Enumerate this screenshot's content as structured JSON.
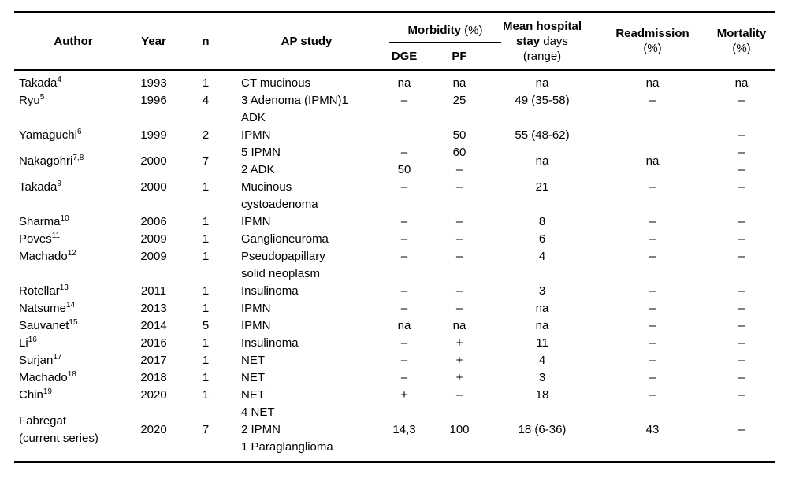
{
  "page": {
    "background": "#ffffff",
    "text_color": "#000000",
    "rule_color": "#000000"
  },
  "table": {
    "header": {
      "author": "Author",
      "year": "Year",
      "n": "n",
      "ap_study": "AP study",
      "morbidity": "Morbidity",
      "morbidity_pct": " (%)",
      "dge": "DGE",
      "pf": "PF",
      "stay_line1": "Mean hospital",
      "stay_line2_bold": "stay",
      "stay_line2_rest": " days",
      "stay_line3": "(range)",
      "readmission": "Readmission",
      "readmission_pct": "(%)",
      "mortality": "Mortality",
      "mortality_pct": "(%)"
    },
    "rows": [
      {
        "author": "Takada",
        "author_sup": "4",
        "author_line2": "",
        "year": "1993",
        "n": "1",
        "ap": [
          "CT mucinous"
        ],
        "dge": [
          "na"
        ],
        "pf": [
          "na"
        ],
        "stay": [
          "na"
        ],
        "readmission": [
          "na"
        ],
        "mortality": [
          "na"
        ],
        "middle_cols": []
      },
      {
        "author": "Ryu",
        "author_sup": "5",
        "author_line2": "",
        "year": "1996",
        "n": "4",
        "ap": [
          "3 Adenoma (IPMN)1",
          "ADK"
        ],
        "dge": [
          "–"
        ],
        "pf": [
          "25"
        ],
        "stay": [
          "49 (35-58)"
        ],
        "readmission": [
          "–"
        ],
        "mortality": [
          "–"
        ],
        "middle_cols": []
      },
      {
        "author": "Yamaguchi",
        "author_sup": "6",
        "author_line2": "",
        "year": "1999",
        "n": "2",
        "ap": [
          "IPMN"
        ],
        "dge": [
          ""
        ],
        "pf": [
          "50"
        ],
        "stay": [
          "55 (48-62)"
        ],
        "readmission": [
          ""
        ],
        "mortality": [
          "–"
        ],
        "middle_cols": []
      },
      {
        "author": "Nakagohri",
        "author_sup": "7,8",
        "author_line2": "",
        "year": "2000",
        "n": "7",
        "ap": [
          "5 IPMN",
          "2 ADK"
        ],
        "dge": [
          "–",
          "50"
        ],
        "pf": [
          "60",
          "–"
        ],
        "stay": [
          "na"
        ],
        "readmission": [
          "na"
        ],
        "mortality": [
          "–",
          "–"
        ],
        "middle_cols": [
          "author",
          "year",
          "n",
          "stay",
          "readmission"
        ]
      },
      {
        "author": "Takada",
        "author_sup": "9",
        "author_line2": "",
        "year": "2000",
        "n": "1",
        "ap": [
          "Mucinous",
          "cystoadenoma"
        ],
        "dge": [
          "–"
        ],
        "pf": [
          "–"
        ],
        "stay": [
          "21"
        ],
        "readmission": [
          "–"
        ],
        "mortality": [
          "–"
        ],
        "middle_cols": []
      },
      {
        "author": "Sharma",
        "author_sup": "10",
        "author_line2": "",
        "year": "2006",
        "n": "1",
        "ap": [
          "IPMN"
        ],
        "dge": [
          "–"
        ],
        "pf": [
          "–"
        ],
        "stay": [
          "8"
        ],
        "readmission": [
          "–"
        ],
        "mortality": [
          "–"
        ],
        "middle_cols": []
      },
      {
        "author": "Poves",
        "author_sup": "11",
        "author_line2": "",
        "year": "2009",
        "n": "1",
        "ap": [
          "Ganglioneuroma"
        ],
        "dge": [
          "–"
        ],
        "pf": [
          "–"
        ],
        "stay": [
          "6"
        ],
        "readmission": [
          "–"
        ],
        "mortality": [
          "–"
        ],
        "middle_cols": []
      },
      {
        "author": "Machado",
        "author_sup": "12",
        "author_line2": "",
        "year": "2009",
        "n": "1",
        "ap": [
          "Pseudopapillary",
          "solid neoplasm"
        ],
        "dge": [
          "–"
        ],
        "pf": [
          "–"
        ],
        "stay": [
          "4"
        ],
        "readmission": [
          "–"
        ],
        "mortality": [
          "–"
        ],
        "middle_cols": []
      },
      {
        "author": "Rotellar",
        "author_sup": "13",
        "author_line2": "",
        "year": "2011",
        "n": "1",
        "ap": [
          "Insulinoma"
        ],
        "dge": [
          "–"
        ],
        "pf": [
          "–"
        ],
        "stay": [
          "3"
        ],
        "readmission": [
          "–"
        ],
        "mortality": [
          "–"
        ],
        "middle_cols": []
      },
      {
        "author": "Natsume",
        "author_sup": "14",
        "author_line2": "",
        "year": "2013",
        "n": "1",
        "ap": [
          "IPMN"
        ],
        "dge": [
          "–"
        ],
        "pf": [
          "–"
        ],
        "stay": [
          "na"
        ],
        "readmission": [
          "–"
        ],
        "mortality": [
          "–"
        ],
        "middle_cols": []
      },
      {
        "author": "Sauvanet",
        "author_sup": "15",
        "author_line2": "",
        "year": "2014",
        "n": "5",
        "ap": [
          "IPMN"
        ],
        "dge": [
          "na"
        ],
        "pf": [
          "na"
        ],
        "stay": [
          "na"
        ],
        "readmission": [
          "–"
        ],
        "mortality": [
          "–"
        ],
        "middle_cols": []
      },
      {
        "author": "Li",
        "author_sup": "16",
        "author_line2": "",
        "year": "2016",
        "n": "1",
        "ap": [
          "Insulinoma"
        ],
        "dge": [
          "–"
        ],
        "pf": [
          "+"
        ],
        "stay": [
          "11"
        ],
        "readmission": [
          "–"
        ],
        "mortality": [
          "–"
        ],
        "middle_cols": []
      },
      {
        "author": "Surjan",
        "author_sup": "17",
        "author_line2": "",
        "year": "2017",
        "n": "1",
        "ap": [
          "NET"
        ],
        "dge": [
          "–"
        ],
        "pf": [
          "+"
        ],
        "stay": [
          "4"
        ],
        "readmission": [
          "–"
        ],
        "mortality": [
          "–"
        ],
        "middle_cols": []
      },
      {
        "author": "Machado",
        "author_sup": "18",
        "author_line2": "",
        "year": "2018",
        "n": "1",
        "ap": [
          "NET"
        ],
        "dge": [
          "–"
        ],
        "pf": [
          "+"
        ],
        "stay": [
          "3"
        ],
        "readmission": [
          "–"
        ],
        "mortality": [
          "–"
        ],
        "middle_cols": []
      },
      {
        "author": "Chin",
        "author_sup": "19",
        "author_line2": "",
        "year": "2020",
        "n": "1",
        "ap": [
          "NET"
        ],
        "dge": [
          "+"
        ],
        "pf": [
          "–"
        ],
        "stay": [
          "18"
        ],
        "readmission": [
          "–"
        ],
        "mortality": [
          "–"
        ],
        "middle_cols": []
      },
      {
        "author": "Fabregat",
        "author_sup": "",
        "author_line2": "(current series)",
        "year": "2020",
        "n": "7",
        "ap": [
          "4 NET",
          "2 IPMN",
          "1 Paraglanglioma"
        ],
        "dge": [
          "14,3"
        ],
        "pf": [
          "100"
        ],
        "stay": [
          "18 (6-36)"
        ],
        "readmission": [
          "43"
        ],
        "mortality": [
          "–"
        ],
        "middle_cols": [
          "author",
          "year",
          "n",
          "dge",
          "pf",
          "stay",
          "readmission",
          "mortality"
        ]
      }
    ]
  }
}
